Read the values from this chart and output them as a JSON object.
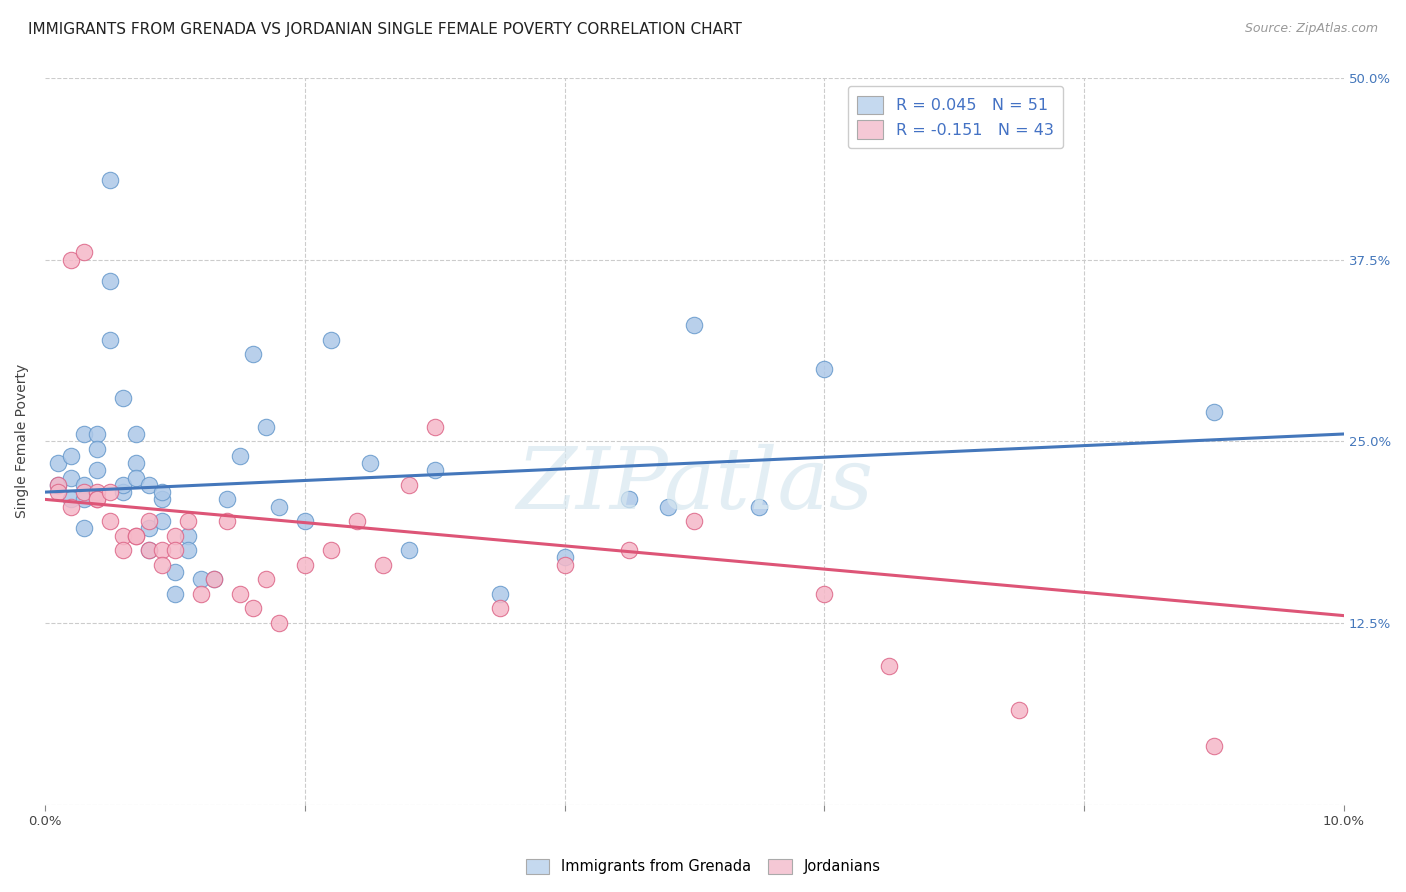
{
  "title": "IMMIGRANTS FROM GRENADA VS JORDANIAN SINGLE FEMALE POVERTY CORRELATION CHART",
  "source": "Source: ZipAtlas.com",
  "xlabel": "Immigrants from Grenada",
  "ylabel": "Single Female Poverty",
  "xlim": [
    0.0,
    0.1
  ],
  "ylim": [
    0.0,
    0.5
  ],
  "xticks": [
    0.0,
    0.02,
    0.04,
    0.06,
    0.08,
    0.1
  ],
  "xtick_labels": [
    "0.0%",
    "",
    "",
    "",
    "",
    "10.0%"
  ],
  "yticks": [
    0.0,
    0.125,
    0.25,
    0.375,
    0.5
  ],
  "ytick_labels_right": [
    "",
    "12.5%",
    "25.0%",
    "37.5%",
    "50.0%"
  ],
  "R_blue": 0.045,
  "N_blue": 51,
  "R_pink": -0.151,
  "N_pink": 43,
  "blue_color": "#adc8e8",
  "blue_edge_color": "#6699cc",
  "blue_legend_color": "#c5d9ef",
  "pink_color": "#f5b8c8",
  "pink_edge_color": "#dd6688",
  "pink_legend_color": "#f5c8d5",
  "blue_line_color": "#4477bb",
  "pink_line_color": "#dd5577",
  "legend_text_color": "#4472c4",
  "bg_color": "#ffffff",
  "grid_color": "#cccccc",
  "title_fontsize": 11,
  "source_fontsize": 9,
  "axis_label_fontsize": 10,
  "tick_fontsize": 9.5,
  "watermark": "ZIPatlas",
  "blue_x": [
    0.001,
    0.001,
    0.002,
    0.002,
    0.002,
    0.003,
    0.003,
    0.003,
    0.003,
    0.004,
    0.004,
    0.004,
    0.005,
    0.005,
    0.005,
    0.006,
    0.006,
    0.006,
    0.007,
    0.007,
    0.007,
    0.008,
    0.008,
    0.008,
    0.009,
    0.009,
    0.009,
    0.01,
    0.01,
    0.011,
    0.011,
    0.012,
    0.013,
    0.014,
    0.015,
    0.016,
    0.017,
    0.018,
    0.02,
    0.022,
    0.025,
    0.028,
    0.03,
    0.035,
    0.04,
    0.045,
    0.048,
    0.05,
    0.055,
    0.06,
    0.09
  ],
  "blue_y": [
    0.22,
    0.235,
    0.21,
    0.225,
    0.24,
    0.255,
    0.22,
    0.21,
    0.19,
    0.255,
    0.245,
    0.23,
    0.43,
    0.36,
    0.32,
    0.28,
    0.215,
    0.22,
    0.255,
    0.235,
    0.225,
    0.19,
    0.175,
    0.22,
    0.21,
    0.195,
    0.215,
    0.16,
    0.145,
    0.185,
    0.175,
    0.155,
    0.155,
    0.21,
    0.24,
    0.31,
    0.26,
    0.205,
    0.195,
    0.32,
    0.235,
    0.175,
    0.23,
    0.145,
    0.17,
    0.21,
    0.205,
    0.33,
    0.205,
    0.3,
    0.27
  ],
  "pink_x": [
    0.001,
    0.001,
    0.002,
    0.002,
    0.003,
    0.003,
    0.004,
    0.004,
    0.004,
    0.005,
    0.005,
    0.006,
    0.006,
    0.007,
    0.007,
    0.008,
    0.008,
    0.009,
    0.009,
    0.01,
    0.01,
    0.011,
    0.012,
    0.013,
    0.014,
    0.015,
    0.016,
    0.017,
    0.018,
    0.02,
    0.022,
    0.024,
    0.026,
    0.028,
    0.03,
    0.035,
    0.04,
    0.045,
    0.05,
    0.06,
    0.065,
    0.075,
    0.09
  ],
  "pink_y": [
    0.22,
    0.215,
    0.205,
    0.375,
    0.215,
    0.38,
    0.215,
    0.21,
    0.21,
    0.195,
    0.215,
    0.185,
    0.175,
    0.185,
    0.185,
    0.195,
    0.175,
    0.175,
    0.165,
    0.185,
    0.175,
    0.195,
    0.145,
    0.155,
    0.195,
    0.145,
    0.135,
    0.155,
    0.125,
    0.165,
    0.175,
    0.195,
    0.165,
    0.22,
    0.26,
    0.135,
    0.165,
    0.175,
    0.195,
    0.145,
    0.095,
    0.065,
    0.04
  ],
  "blue_trend_x0": 0.0,
  "blue_trend_y0": 0.215,
  "blue_trend_x1": 0.1,
  "blue_trend_y1": 0.255,
  "pink_trend_x0": 0.0,
  "pink_trend_y0": 0.21,
  "pink_trend_x1": 0.1,
  "pink_trend_y1": 0.13
}
